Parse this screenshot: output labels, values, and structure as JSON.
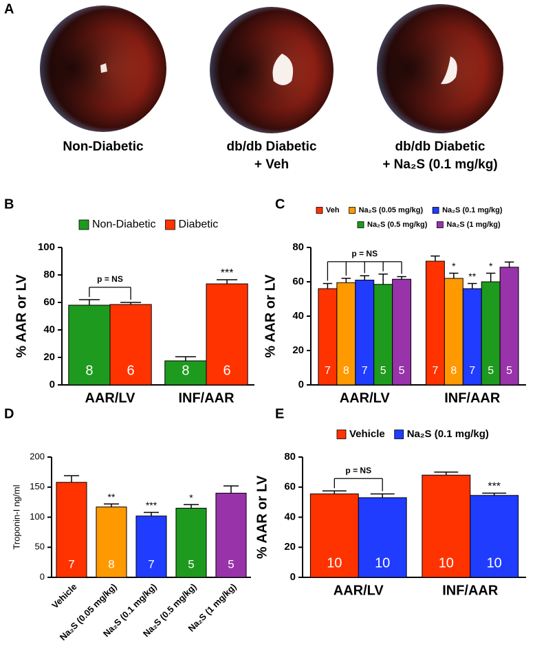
{
  "panel_a": {
    "label": "A",
    "captions": [
      [
        "Non-Diabetic"
      ],
      [
        "db/db Diabetic",
        "+ Veh"
      ],
      [
        "db/db Diabetic",
        "+ Na₂S (0.1 mg/kg)"
      ]
    ]
  },
  "chart_data": [
    {
      "type": "grouped_bar",
      "panel": "B",
      "ylabel": "% AAR or LV",
      "categories": [
        "AAR/LV",
        "INF/AAR"
      ],
      "series": [
        {
          "name": "Non-Diabetic",
          "color": "#1e9a1e",
          "values": [
            58,
            17.5
          ],
          "errors": [
            4,
            3
          ],
          "n": [
            8,
            8
          ],
          "sig": [
            null,
            null
          ]
        },
        {
          "name": "Diabetic",
          "color": "#ff3300",
          "values": [
            58.5,
            73.5
          ],
          "errors": [
            1.5,
            3
          ],
          "n": [
            6,
            6
          ],
          "sig": [
            null,
            "***"
          ]
        }
      ],
      "bracket_label": "p = NS",
      "ylim": [
        0,
        100
      ],
      "yticks": [
        0,
        20,
        40,
        60,
        80,
        100
      ]
    },
    {
      "type": "grouped_bar",
      "panel": "C",
      "ylabel": "% AAR or LV",
      "categories": [
        "AAR/LV",
        "INF/AAR"
      ],
      "series": [
        {
          "name": "Veh",
          "color": "#ff3300",
          "values": [
            56,
            72
          ],
          "errors": [
            3,
            3
          ],
          "n": [
            7,
            7
          ],
          "sig": [
            null,
            null
          ]
        },
        {
          "name": "Na₂S (0.05 mg/kg)",
          "color": "#ff9900",
          "values": [
            59.5,
            62
          ],
          "errors": [
            2.5,
            3
          ],
          "n": [
            8,
            8
          ],
          "sig": [
            null,
            "*"
          ]
        },
        {
          "name": "Na₂S (0.1 mg/kg)",
          "color": "#1f3cff",
          "values": [
            61,
            56
          ],
          "errors": [
            2.5,
            3
          ],
          "n": [
            7,
            7
          ],
          "sig": [
            null,
            "**"
          ]
        },
        {
          "name": "Na₂S (0.5 mg/kg)",
          "color": "#1e9a1e",
          "values": [
            58.5,
            60
          ],
          "errors": [
            6,
            5
          ],
          "n": [
            5,
            5
          ],
          "sig": [
            null,
            "*"
          ]
        },
        {
          "name": "Na₂S (1 mg/kg)",
          "color": "#9933aa",
          "values": [
            61.5,
            68.5
          ],
          "errors": [
            1.5,
            3
          ],
          "n": [
            5,
            5
          ],
          "sig": [
            null,
            null
          ]
        }
      ],
      "bracket_label": "p = NS",
      "ylim": [
        0,
        80
      ],
      "yticks": [
        0,
        20,
        40,
        60,
        80
      ]
    },
    {
      "type": "bar",
      "panel": "D",
      "ylabel": "Troponin-I ng/ml",
      "categories": [
        "Vehicle",
        "Na₂S (0.05 mg/kg)",
        "Na₂S (0.1 mg/kg)",
        "Na₂S (0.5 mg/kg)",
        "Na₂S (1 mg/kg)"
      ],
      "values": [
        158,
        117,
        102,
        115,
        140
      ],
      "errors": [
        11,
        5,
        6,
        6,
        12
      ],
      "colors": [
        "#ff3300",
        "#ff9900",
        "#1f3cff",
        "#1e9a1e",
        "#9933aa"
      ],
      "n": [
        7,
        8,
        7,
        5,
        5
      ],
      "sig": [
        null,
        "**",
        "***",
        "*",
        null
      ],
      "ylim": [
        0,
        200
      ],
      "yticks": [
        0,
        50,
        100,
        150,
        200
      ]
    },
    {
      "type": "grouped_bar",
      "panel": "E",
      "ylabel": "% AAR or LV",
      "categories": [
        "AAR/LV",
        "INF/AAR"
      ],
      "series": [
        {
          "name": "Vehicle",
          "color": "#ff3300",
          "values": [
            55.5,
            68
          ],
          "errors": [
            2,
            2
          ],
          "n": [
            10,
            10
          ],
          "sig": [
            null,
            null
          ]
        },
        {
          "name": "Na₂S (0.1 mg/kg)",
          "color": "#1f3cff",
          "values": [
            53,
            54.5
          ],
          "errors": [
            2.5,
            1.5
          ],
          "n": [
            10,
            10
          ],
          "sig": [
            null,
            "***"
          ]
        }
      ],
      "bracket_label": "p = NS",
      "ylim": [
        0,
        80
      ],
      "yticks": [
        0,
        20,
        40,
        60,
        80
      ]
    }
  ]
}
